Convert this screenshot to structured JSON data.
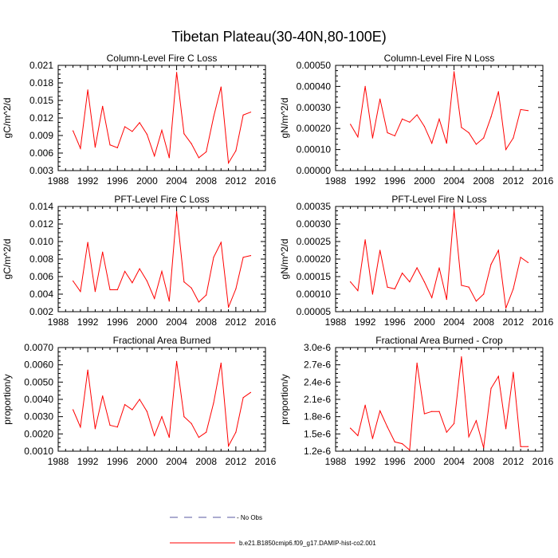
{
  "figure_title": "Tibetan Plateau(30-40N,80-100E)",
  "colors": {
    "model_line": "#ff0000",
    "obs_line": "#5a5aa0",
    "axis": "#000000"
  },
  "legend": {
    "obs_label": "- No Obs",
    "model_label": "b.e21.B1850cmip6.f09_g17.DAMIP-hist-co2.001"
  },
  "chart_data": [
    {
      "type": "line",
      "title": "Column-Level Fire C Loss",
      "ylabel": "gC/m^2/d",
      "xlim": [
        1988,
        2016
      ],
      "ylim": [
        0.003,
        0.021
      ],
      "xticks": [
        "1988",
        "1992",
        "1996",
        "2000",
        "2004",
        "2008",
        "2012",
        "2016"
      ],
      "yticks": [
        "0.003",
        "0.006",
        "0.009",
        "0.012",
        "0.015",
        "0.018",
        "0.021"
      ],
      "series": [
        {
          "name": "b.e21.B1850cmip6.f09_g17.DAMIP-hist-co2.001",
          "x": [
            1990,
            1991,
            1992,
            1993,
            1994,
            1995,
            1996,
            1997,
            1998,
            1999,
            2000,
            2001,
            2002,
            2003,
            2004,
            2005,
            2006,
            2007,
            2008,
            2009,
            2010,
            2011,
            2012,
            2013,
            2014
          ],
          "values": [
            0.0098,
            0.0068,
            0.0168,
            0.007,
            0.014,
            0.0074,
            0.0069,
            0.0105,
            0.0097,
            0.0112,
            0.0092,
            0.0055,
            0.0099,
            0.0052,
            0.0198,
            0.0093,
            0.0076,
            0.0052,
            0.0062,
            0.0122,
            0.0173,
            0.0043,
            0.0064,
            0.0125,
            0.013
          ]
        }
      ]
    },
    {
      "type": "line",
      "title": "Column-Level Fire N Loss",
      "ylabel": "gN/m^2/d",
      "xlim": [
        1988,
        2016
      ],
      "ylim": [
        0.0,
        0.0005
      ],
      "xticks": [
        "1988",
        "1992",
        "1996",
        "2000",
        "2004",
        "2008",
        "2012",
        "2016"
      ],
      "yticks": [
        "0.00000",
        "0.00010",
        "0.00020",
        "0.00030",
        "0.00040",
        "0.00050"
      ],
      "series": [
        {
          "name": "b.e21.B1850cmip6.f09_g17.DAMIP-hist-co2.001",
          "x": [
            1990,
            1991,
            1992,
            1993,
            1994,
            1995,
            1996,
            1997,
            1998,
            1999,
            2000,
            2001,
            2002,
            2003,
            2004,
            2005,
            2006,
            2007,
            2008,
            2009,
            2010,
            2011,
            2012,
            2013,
            2014
          ],
          "values": [
            0.00022,
            0.00016,
            0.0004,
            0.000155,
            0.00034,
            0.00018,
            0.000165,
            0.000245,
            0.00023,
            0.000265,
            0.00021,
            0.00013,
            0.000245,
            0.00013,
            0.00047,
            0.000205,
            0.00018,
            0.000125,
            0.000155,
            0.000255,
            0.000375,
            0.0001,
            0.000155,
            0.00029,
            0.000285
          ]
        }
      ]
    },
    {
      "type": "line",
      "title": "PFT-Level Fire C Loss",
      "ylabel": "gC/m^2/d",
      "xlim": [
        1988,
        2016
      ],
      "ylim": [
        0.002,
        0.014
      ],
      "xticks": [
        "1988",
        "1992",
        "1996",
        "2000",
        "2004",
        "2008",
        "2012",
        "2016"
      ],
      "yticks": [
        "0.002",
        "0.004",
        "0.006",
        "0.008",
        "0.010",
        "0.012",
        "0.014"
      ],
      "series": [
        {
          "name": "b.e21.B1850cmip6.f09_g17.DAMIP-hist-co2.001",
          "x": [
            1990,
            1991,
            1992,
            1993,
            1994,
            1995,
            1996,
            1997,
            1998,
            1999,
            2000,
            2001,
            2002,
            2003,
            2004,
            2005,
            2006,
            2007,
            2008,
            2009,
            2010,
            2011,
            2012,
            2013,
            2014
          ],
          "values": [
            0.0055,
            0.0043,
            0.0099,
            0.0043,
            0.0088,
            0.0045,
            0.0045,
            0.0066,
            0.0053,
            0.0069,
            0.0055,
            0.0035,
            0.0066,
            0.0032,
            0.0134,
            0.0054,
            0.0047,
            0.0031,
            0.0039,
            0.0082,
            0.0099,
            0.0025,
            0.0046,
            0.0082,
            0.0084
          ]
        }
      ]
    },
    {
      "type": "line",
      "title": "PFT-Level Fire N Loss",
      "ylabel": "gN/m^2/d",
      "xlim": [
        1988,
        2016
      ],
      "ylim": [
        5e-05,
        0.00035
      ],
      "xticks": [
        "1988",
        "1992",
        "1996",
        "2000",
        "2004",
        "2008",
        "2012",
        "2016"
      ],
      "yticks": [
        "0.00005",
        "0.00010",
        "0.00015",
        "0.00020",
        "0.00025",
        "0.00030",
        "0.00035"
      ],
      "series": [
        {
          "name": "b.e21.B1850cmip6.f09_g17.DAMIP-hist-co2.001",
          "x": [
            1990,
            1991,
            1992,
            1993,
            1994,
            1995,
            1996,
            1997,
            1998,
            1999,
            2000,
            2001,
            2002,
            2003,
            2004,
            2005,
            2006,
            2007,
            2008,
            2009,
            2010,
            2011,
            2012,
            2013,
            2014
          ],
          "values": [
            0.000135,
            0.00011,
            0.000255,
            0.0001,
            0.000225,
            0.00012,
            0.000115,
            0.00016,
            0.000135,
            0.000175,
            0.000135,
            9e-05,
            0.000175,
            8.5e-05,
            0.00034,
            0.000125,
            0.00012,
            8e-05,
            0.0001,
            0.000185,
            0.000225,
            6e-05,
            0.000115,
            0.000205,
            0.00019
          ]
        }
      ]
    },
    {
      "type": "line",
      "title": "Fractional Area Burned",
      "ylabel": "proportion/y",
      "xlim": [
        1988,
        2016
      ],
      "ylim": [
        0.001,
        0.007
      ],
      "xticks": [
        "1988",
        "1992",
        "1996",
        "2000",
        "2004",
        "2008",
        "2012",
        "2016"
      ],
      "yticks": [
        "0.0010",
        "0.0020",
        "0.0030",
        "0.0040",
        "0.0050",
        "0.0060",
        "0.0070"
      ],
      "series": [
        {
          "name": "b.e21.B1850cmip6.f09_g17.DAMIP-hist-co2.001",
          "x": [
            1990,
            1991,
            1992,
            1993,
            1994,
            1995,
            1996,
            1997,
            1998,
            1999,
            2000,
            2001,
            2002,
            2003,
            2004,
            2005,
            2006,
            2007,
            2008,
            2009,
            2010,
            2011,
            2012,
            2013,
            2014
          ],
          "values": [
            0.0034,
            0.0024,
            0.0057,
            0.0023,
            0.0042,
            0.0025,
            0.0024,
            0.0037,
            0.0034,
            0.004,
            0.0033,
            0.0019,
            0.003,
            0.0018,
            0.0062,
            0.003,
            0.0026,
            0.0018,
            0.0021,
            0.0038,
            0.0061,
            0.0013,
            0.0021,
            0.0041,
            0.0044
          ]
        }
      ]
    },
    {
      "type": "line",
      "title": "Fractional Area Burned - Crop",
      "ylabel": "proportion/y",
      "xlim": [
        1988,
        2016
      ],
      "ylim": [
        1.2,
        3.0
      ],
      "yunit_suffix": "e-6",
      "xticks": [
        "1988",
        "1992",
        "1996",
        "2000",
        "2004",
        "2008",
        "2012",
        "2016"
      ],
      "yticks": [
        "1.2e-6",
        "1.5e-6",
        "1.8e-6",
        "2.1e-6",
        "2.4e-6",
        "2.7e-6",
        "3.0e-6"
      ],
      "series": [
        {
          "name": "b.e21.B1850cmip6.f09_g17.DAMIP-hist-co2.001",
          "x": [
            1990,
            1991,
            1992,
            1993,
            1994,
            1995,
            1996,
            1997,
            1998,
            1999,
            2000,
            2001,
            2002,
            2003,
            2004,
            2005,
            2006,
            2007,
            2008,
            2009,
            2010,
            2011,
            2012,
            2013,
            2014
          ],
          "values": [
            1.6,
            1.47,
            2.0,
            1.42,
            1.9,
            1.62,
            1.36,
            1.33,
            1.22,
            2.73,
            1.85,
            1.89,
            1.89,
            1.53,
            1.68,
            2.84,
            1.45,
            1.73,
            1.26,
            2.29,
            2.5,
            1.59,
            2.57,
            1.28,
            1.28
          ]
        }
      ]
    }
  ]
}
